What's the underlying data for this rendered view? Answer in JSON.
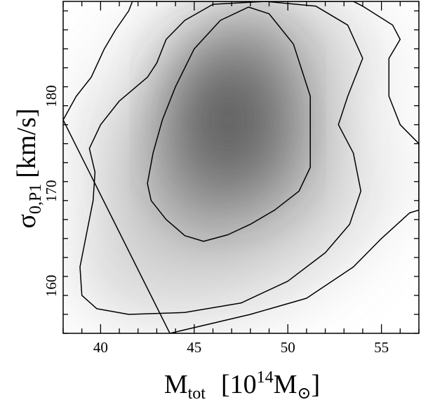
{
  "chart_data": {
    "type": "heatmap",
    "title": "",
    "xlabel": {
      "main": "M",
      "sub": "tot",
      "open": "[10",
      "sup": "14",
      "unit": "M",
      "unit_sub": "⊙",
      "close": "]"
    },
    "ylabel": {
      "main": "σ",
      "sub": "0,P1",
      "unit": "[km/s]"
    },
    "xlim": [
      38,
      57
    ],
    "ylim": [
      155,
      190
    ],
    "x_ticks": [
      40,
      45,
      50,
      55
    ],
    "y_ticks": [
      160,
      170,
      180
    ],
    "x_tick_labels": [
      "40",
      "45",
      "50",
      "55"
    ],
    "y_tick_labels": [
      "160",
      "170",
      "180"
    ],
    "x_minor_step": 1,
    "y_minor_step": 2,
    "grid": false,
    "density_peak": {
      "x": 46.8,
      "y": 177.5
    },
    "colors": {
      "density": "#505050",
      "background": "#ffffff",
      "contour": "#000000"
    },
    "contours": [
      {
        "level": "inner",
        "points": [
          [
            45.5,
            164.7
          ],
          [
            46.8,
            165.4
          ],
          [
            48.0,
            166.5
          ],
          [
            49.3,
            168.0
          ],
          [
            50.6,
            170.0
          ],
          [
            51.2,
            172.5
          ],
          [
            51.2,
            180.0
          ],
          [
            50.3,
            185.5
          ],
          [
            49.0,
            188.7
          ],
          [
            47.9,
            189.4
          ],
          [
            46.4,
            188.0
          ],
          [
            45.0,
            185.0
          ],
          [
            44.0,
            181.0
          ],
          [
            43.3,
            177.5
          ],
          [
            42.8,
            174.0
          ],
          [
            42.5,
            170.8
          ],
          [
            42.7,
            169.0
          ],
          [
            43.5,
            167.0
          ],
          [
            44.5,
            165.3
          ]
        ]
      },
      {
        "level": "middle",
        "points": [
          [
            41.5,
            157.0
          ],
          [
            44.5,
            157.2
          ],
          [
            47.5,
            158.2
          ],
          [
            50.0,
            160.5
          ],
          [
            52.0,
            163.5
          ],
          [
            53.3,
            166.5
          ],
          [
            53.9,
            170.0
          ],
          [
            53.5,
            174.0
          ],
          [
            52.7,
            177.0
          ],
          [
            53.2,
            180.0
          ],
          [
            54.0,
            184.0
          ],
          [
            53.2,
            187.5
          ],
          [
            51.5,
            189.5
          ],
          [
            48.8,
            190.0
          ],
          [
            46.0,
            189.7
          ],
          [
            44.5,
            188.0
          ],
          [
            43.5,
            186.0
          ],
          [
            43.0,
            183.5
          ],
          [
            42.5,
            182.0
          ],
          [
            41.0,
            179.5
          ],
          [
            40.0,
            177.0
          ],
          [
            39.4,
            174.5
          ],
          [
            39.7,
            172.0
          ],
          [
            39.6,
            169.0
          ],
          [
            39.2,
            165.0
          ],
          [
            38.9,
            162.0
          ],
          [
            39.0,
            159.0
          ],
          [
            39.8,
            157.6
          ]
        ]
      },
      {
        "level": "outer",
        "points": [
          [
            43.7,
            155.0
          ],
          [
            48.0,
            157.0
          ],
          [
            51.0,
            158.7
          ],
          [
            53.5,
            162.0
          ],
          [
            55.0,
            165.0
          ],
          [
            56.5,
            167.7
          ],
          [
            57.0,
            168.0
          ],
          [
            57.0,
            175.0
          ],
          [
            56.0,
            177.0
          ],
          [
            55.4,
            180.0
          ],
          [
            55.4,
            184.0
          ],
          [
            56.0,
            186.0
          ],
          [
            55.6,
            187.5
          ],
          [
            54.0,
            189.5
          ],
          [
            53.5,
            190.0
          ],
          [
            41.7,
            190.0
          ],
          [
            41.5,
            189.0
          ],
          [
            40.8,
            187.0
          ],
          [
            40.2,
            185.0
          ],
          [
            39.5,
            182.0
          ],
          [
            38.7,
            180.0
          ],
          [
            38.0,
            177.5
          ]
        ]
      }
    ]
  }
}
